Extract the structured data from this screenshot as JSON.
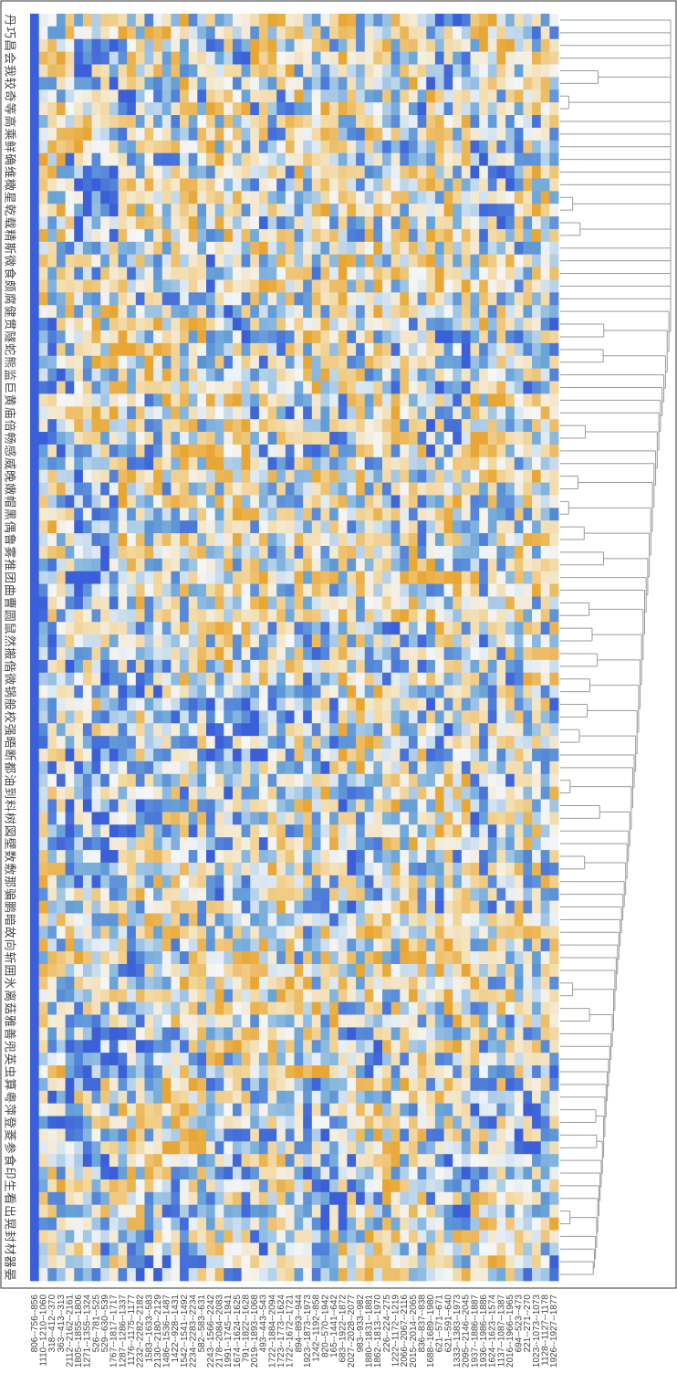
{
  "chart_data": {
    "type": "heatmap",
    "title": "",
    "xlabel": "",
    "ylabel": "",
    "grid": false,
    "legend": "none",
    "dendrogram": "right",
    "colormap": {
      "low": "#3a5fd9",
      "lowmid": "#6aa5d8",
      "mid": "#f4f6f8",
      "highmid": "#f3d8a0",
      "high": "#e8a735"
    },
    "value_range": [
      -1,
      1
    ],
    "n_rows": 100,
    "columns": [
      "806--756--856",
      "1110--1210--1060",
      "318--412--370",
      "363--413--313",
      "2112--2162--2161",
      "1805--1855--1806",
      "1271--1355--1324",
      "526--781--525",
      "529--630--539",
      "1767--1817--1717",
      "1287--1286--1337",
      "1176--1175--1177",
      "2232--2282--2182",
      "1583--1633--583",
      "2130--2180--2129",
      "1486--1536--1487",
      "1422--928--1431",
      "1542--1541--1492",
      "2234--2283--2234",
      "582--583--631",
      "2243--1566--2242",
      "2178--2084--2083",
      "1991--1745--1941",
      "1674--1624--1625",
      "791--1822--1628",
      "2019--1893--1068",
      "493--443--543",
      "1722--1884--2094",
      "1723--1773--1624",
      "1722--1672--1721",
      "894--893--944",
      "1923--1873--1973",
      "1242--1192--858",
      "820--570--1942",
      "165--1441--642",
      "683--1922--1872",
      "2027--2028--2077",
      "983--933--982",
      "1880--1831--1881",
      "1862--1813--1970",
      "226--224--275",
      "1222--1172--1219",
      "2066--2067--2116",
      "2015--2014--2065",
      "836--837--838",
      "1688--1689--1980",
      "621--571--671",
      "621--591--640",
      "1333--1383--1973",
      "2095--2146--2045",
      "1937--1886--1887",
      "1936--1986--1886",
      "1624--1623--1574",
      "1137--1087--1387",
      "2016--1966--1965",
      "694--523--473",
      "221--271--270",
      "1023--1073--1073",
      "1128--1127--1178",
      "1926--1927--1877"
    ],
    "row_labels": [
      "丹",
      "巧",
      "昌",
      "会",
      "我",
      "较",
      "奇",
      "等",
      "高",
      "乘",
      "鲜",
      "确",
      "维",
      "橄",
      "星",
      "乾",
      "载",
      "精",
      "斯",
      "微",
      "食",
      "颇",
      "腐",
      "健",
      "贯",
      "隧",
      "蛇",
      "熊",
      "监",
      "巨",
      "黄",
      "庙",
      "倍",
      "畅",
      "感",
      "威",
      "晚",
      "嫩",
      "帽",
      "黑",
      "偶",
      "鲁",
      "雾",
      "推",
      "团",
      "曲",
      "曹",
      "圆",
      "鼠",
      "然",
      "搬",
      "偕",
      "微",
      "锅",
      "般",
      "校",
      "强",
      "晤",
      "断",
      "都",
      "油",
      "到",
      "料",
      "树",
      "図",
      "壁",
      "数",
      "敷",
      "那",
      "骗",
      "鹏",
      "暗",
      "故",
      "向",
      "斩",
      "囲",
      "氷",
      "离",
      "菇",
      "雅",
      "善",
      "兜",
      "英",
      "虫",
      "算",
      "粤",
      "萍",
      "登",
      "菱",
      "参",
      "食",
      "印",
      "生",
      "看",
      "出",
      "晃",
      "封",
      "材",
      "器",
      "晏"
    ],
    "values": "deterministic-hash"
  }
}
